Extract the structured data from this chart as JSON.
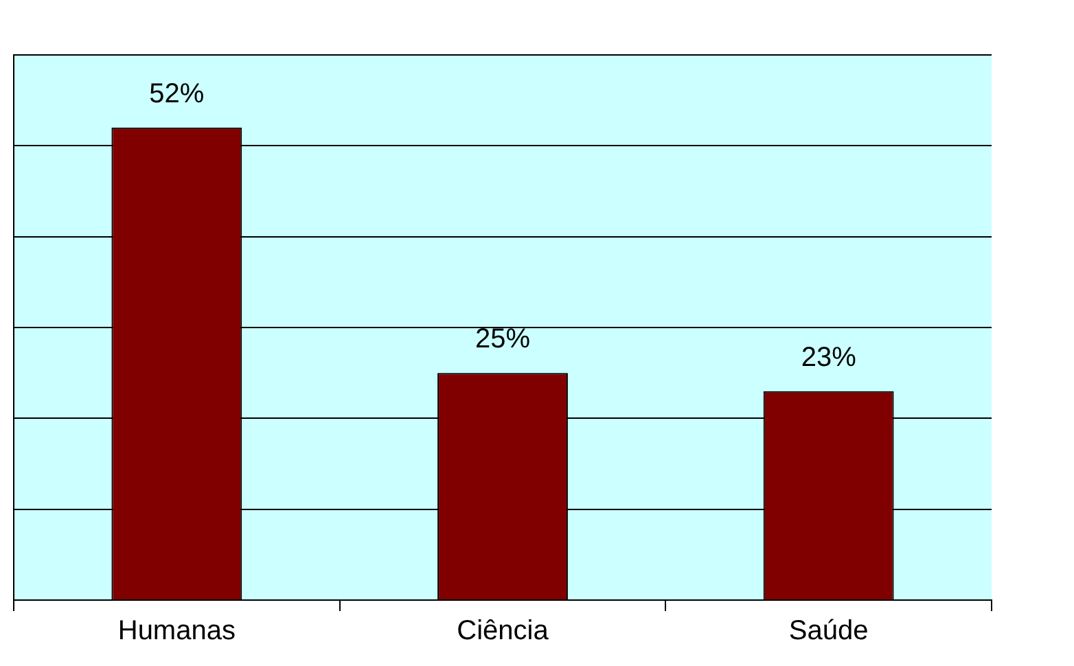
{
  "chart_data": {
    "type": "bar",
    "categories": [
      "Humanas",
      "Ciência",
      "Saúde"
    ],
    "values": [
      52,
      25,
      23
    ],
    "color": "#800000",
    "value_labels": [
      "52%",
      "25%",
      "23%"
    ],
    "ylim": [
      0,
      60
    ],
    "yticks": [
      {
        "value": 0,
        "label": null
      },
      {
        "value": 10,
        "label": null
      },
      {
        "value": 20,
        "label": null
      },
      {
        "value": 30,
        "label": null
      },
      {
        "value": 40,
        "label": null
      },
      {
        "value": 50,
        "label": null
      },
      {
        "value": 60,
        "label": null
      }
    ],
    "tick_labels": "x",
    "grid": "y",
    "legend": false
  }
}
